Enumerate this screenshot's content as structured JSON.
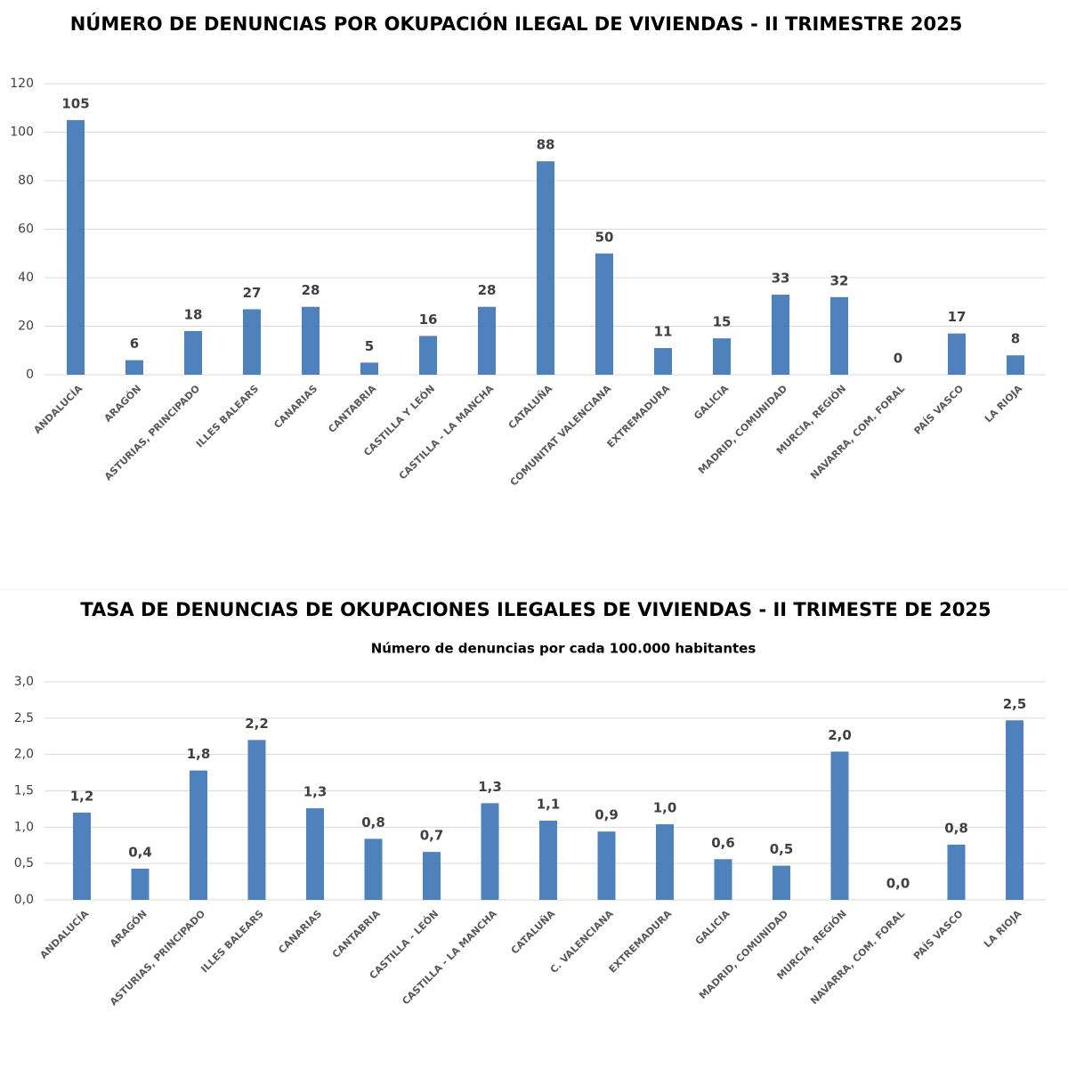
{
  "chart_data": [
    {
      "type": "bar",
      "title": "NÚMERO DE DENUNCIAS POR OKUPACIÓN ILEGAL DE VIVIENDAS - II TRIMESTRE 2025",
      "categories": [
        "ANDALUCÍA",
        "ARAGÓN",
        "ASTURIAS, PRINCIPADO",
        "ILLES BALEARS",
        "CANARIAS",
        "CANTABRIA",
        "CASTILLA Y LEÓN",
        "CASTILLA - LA MANCHA",
        "CATALUÑA",
        "COMUNITAT VALENCIANA",
        "EXTREMADURA",
        "GALICIA",
        "MADRID, COMUNIDAD",
        "MURCIA, REGIÓN",
        "NAVARRA, COM. FORAL",
        "PAÍS VASCO",
        "LA RIOJA"
      ],
      "values": [
        105,
        6,
        18,
        27,
        28,
        5,
        16,
        28,
        88,
        50,
        11,
        15,
        33,
        32,
        0,
        17,
        8
      ],
      "color": "#4f81bd",
      "ylim": [
        0,
        120
      ],
      "yticks": [
        0,
        20,
        40,
        60,
        80,
        100,
        120
      ],
      "grid": true
    },
    {
      "type": "bar",
      "title": "TASA DE DENUNCIAS DE OKUPACIONES ILEGALES DE VIVIENDAS - II TRIMESTE DE 2025",
      "subtitle": "Número de denuncias por cada 100.000 habitantes",
      "categories": [
        "ANDALUCÍA",
        "ARAGÓN",
        "ASTURIAS, PRINCIPADO",
        "ILLES BALEARS",
        "CANARIAS",
        "CANTABRIA",
        "CASTILLA - LEÓN",
        "CASTILLA - LA MANCHA",
        "CATALUÑA",
        "C. VALENCIANA",
        "EXTREMADURA",
        "GALICIA",
        "MADRID, COMUNIDAD",
        "MURCIA, REGIÓN",
        "NAVARRA, COM. FORAL",
        "PAÍS VASCO",
        "LA RIOJA"
      ],
      "values": [
        1.2,
        0.43,
        1.78,
        2.2,
        1.26,
        0.84,
        0.66,
        1.33,
        1.09,
        0.94,
        1.04,
        0.56,
        0.47,
        2.04,
        0,
        0.76,
        2.47
      ],
      "value_labels": [
        "1,2",
        "0,4",
        "1,8",
        "2,2",
        "1,3",
        "0,8",
        "0,7",
        "1,3",
        "1,1",
        "0,9",
        "1,0",
        "0,6",
        "0,5",
        "2,0",
        "0,0",
        "0,8",
        "2,5"
      ],
      "color": "#4f81bd",
      "ylim": [
        0,
        3
      ],
      "yticks": [
        {
          "value": 0,
          "label": "0,0"
        },
        {
          "value": 0.5,
          "label": "0,5"
        },
        {
          "value": 1,
          "label": "1,0"
        },
        {
          "value": 1.5,
          "label": "1,5"
        },
        {
          "value": 2,
          "label": "2,0"
        },
        {
          "value": 2.5,
          "label": "2,5"
        },
        {
          "value": 3,
          "label": "3,0"
        }
      ],
      "grid": true
    }
  ]
}
